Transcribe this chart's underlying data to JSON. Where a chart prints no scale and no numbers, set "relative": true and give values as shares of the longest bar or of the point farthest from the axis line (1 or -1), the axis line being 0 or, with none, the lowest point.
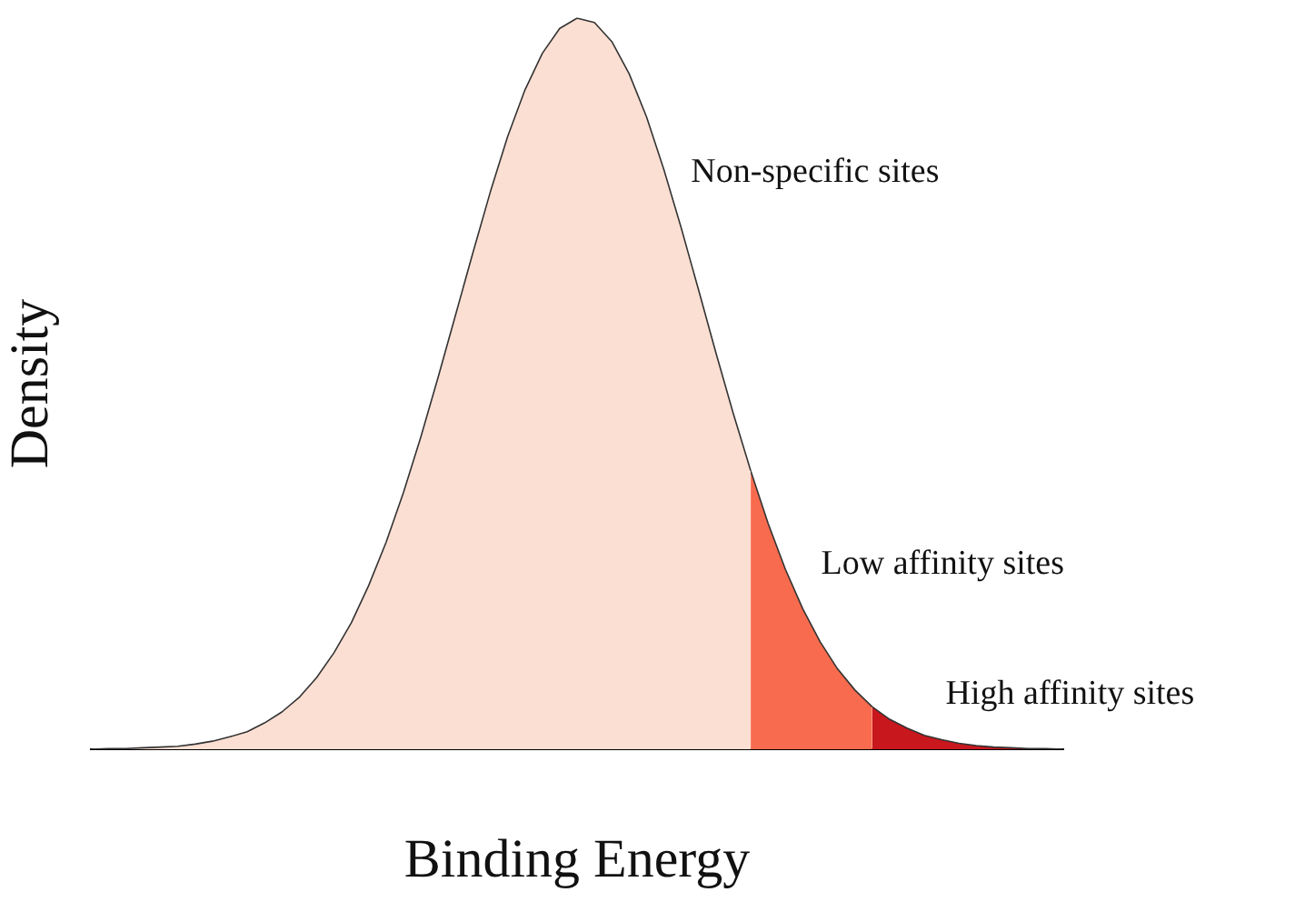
{
  "chart_data": {
    "type": "area",
    "relative": true,
    "xlabel": "Binding Energy",
    "ylabel": "Density",
    "categories": [
      null,
      null,
      null,
      null,
      null,
      null,
      null,
      null,
      null,
      null,
      null,
      null,
      null,
      null,
      null,
      null,
      null,
      null,
      null,
      null,
      null,
      null,
      null,
      null,
      null,
      null,
      null,
      null,
      null,
      null,
      null,
      null,
      null,
      null,
      null,
      null,
      null,
      null,
      null,
      null,
      null,
      null,
      null,
      null,
      null,
      null,
      null,
      null,
      null,
      null,
      null,
      null,
      null,
      null,
      null,
      null,
      null
    ],
    "series": [
      {
        "name": "Non-specific sites",
        "color": "#fcdfd3",
        "values": [
          0,
          0.001,
          0.001,
          0.002,
          0.003,
          0.004,
          0.007,
          0.011,
          0.017,
          0.024,
          0.036,
          0.051,
          0.071,
          0.098,
          0.132,
          0.173,
          0.224,
          0.283,
          0.351,
          0.427,
          0.509,
          0.594,
          0.679,
          0.762,
          0.838,
          0.902,
          0.952,
          0.986,
          1,
          0.994,
          0.968,
          0.924,
          0.865,
          0.793,
          0.713,
          0.628,
          0.542,
          0.459,
          0.381,
          null,
          null,
          null,
          null,
          null,
          null,
          null,
          null,
          null,
          null,
          null,
          null,
          null,
          null,
          null,
          null,
          null,
          null
        ]
      },
      {
        "name": "Low affinity sites",
        "color": "#f86b4e",
        "values": [
          null,
          null,
          null,
          null,
          null,
          null,
          null,
          null,
          null,
          null,
          null,
          null,
          null,
          null,
          null,
          null,
          null,
          null,
          null,
          null,
          null,
          null,
          null,
          null,
          null,
          null,
          null,
          null,
          null,
          null,
          null,
          null,
          null,
          null,
          null,
          null,
          null,
          null,
          0.381,
          0.309,
          0.246,
          0.192,
          0.147,
          0.11,
          0.081,
          0.058,
          null,
          null,
          null,
          null,
          null,
          null,
          null,
          null,
          null,
          null,
          null
        ]
      },
      {
        "name": "High affinity sites",
        "color": "#c9171e",
        "values": [
          null,
          null,
          null,
          null,
          null,
          null,
          null,
          null,
          null,
          null,
          null,
          null,
          null,
          null,
          null,
          null,
          null,
          null,
          null,
          null,
          null,
          null,
          null,
          null,
          null,
          null,
          null,
          null,
          null,
          null,
          null,
          null,
          null,
          null,
          null,
          null,
          null,
          null,
          null,
          null,
          null,
          null,
          null,
          null,
          null,
          0.058,
          0.041,
          0.029,
          0.019,
          0.013,
          0.008,
          0.005,
          0.003,
          0.002,
          0.001,
          0.001,
          0
        ]
      }
    ]
  }
}
